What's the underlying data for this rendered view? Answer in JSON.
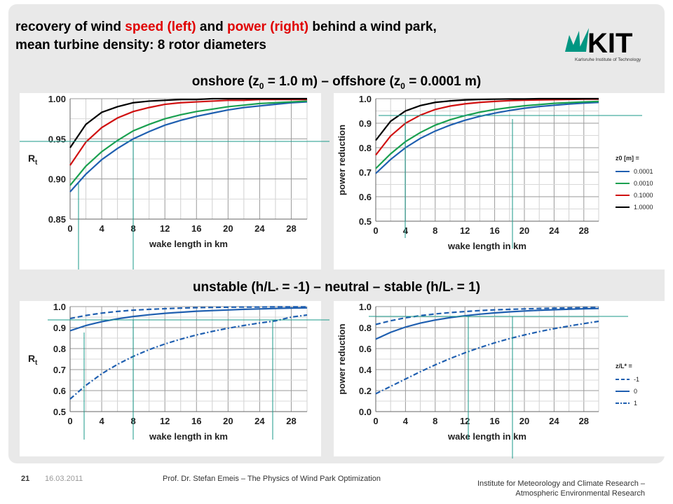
{
  "slide": {
    "title_line1_a": "recovery of wind ",
    "title_line1_b": "speed (left)",
    "title_line1_c": " and ",
    "title_line1_d": "power (right)",
    "title_line1_e": " behind a wind park,",
    "title_line2": "mean turbine density: 8 rotor diameters",
    "subhead1": {
      "a": "onshore (z",
      "sub1": "0",
      "b": " = 1.0 m) – offshore (z",
      "sub2": "0",
      "c": " = 0.0001 m)"
    },
    "subhead2": {
      "a": "unstable (h/L",
      "star1": "*",
      "b": " = -1) – neutral – stable (h/L",
      "star2": "*",
      "c": " = 1)"
    },
    "logo_text": "KIT",
    "logo_subtitle": "Karlsruhe Institute of Technology",
    "footer": {
      "page": "21",
      "date": "16.03.2011",
      "author": "Prof. Dr. Stefan Emeis – The Physics of Wind Park Optimization",
      "institute_line1": "Institute for Meteorology and Climate Research –",
      "institute_line2": "Atmospheric Environmental Research"
    },
    "colors": {
      "red": "#e00000",
      "kit_green": "#009682",
      "guide": "#1a9a8a"
    }
  },
  "chart_data": [
    {
      "type": "line",
      "ylabel": "Rt",
      "xlabel": "wake length in km",
      "xlim": [
        0,
        30
      ],
      "ylim": [
        0.85,
        1.0
      ],
      "xticks": [
        0,
        4,
        8,
        12,
        16,
        20,
        24,
        28
      ],
      "yticks": [
        0.85,
        0.9,
        0.95,
        1.0
      ],
      "ytick_labels": [
        "0.85",
        "0.90",
        "0.95",
        "1.00"
      ],
      "grid": true,
      "x": [
        0,
        2,
        4,
        6,
        8,
        10,
        12,
        14,
        16,
        18,
        20,
        22,
        24,
        26,
        28,
        30
      ],
      "series": [
        {
          "color": "#1f5fb0",
          "style": "solid",
          "values": [
            0.884,
            0.906,
            0.924,
            0.938,
            0.95,
            0.959,
            0.967,
            0.973,
            0.978,
            0.982,
            0.986,
            0.989,
            0.991,
            0.993,
            0.995,
            0.996
          ]
        },
        {
          "color": "#1aa050",
          "style": "solid",
          "values": [
            0.892,
            0.916,
            0.934,
            0.948,
            0.96,
            0.968,
            0.975,
            0.98,
            0.984,
            0.987,
            0.99,
            0.992,
            0.994,
            0.995,
            0.996,
            0.997
          ]
        },
        {
          "color": "#d01010",
          "style": "solid",
          "values": [
            0.917,
            0.946,
            0.964,
            0.976,
            0.984,
            0.989,
            0.993,
            0.995,
            0.996,
            0.997,
            0.998,
            0.998,
            0.999,
            0.999,
            0.999,
            0.999
          ]
        },
        {
          "color": "#000000",
          "style": "solid",
          "values": [
            0.939,
            0.968,
            0.983,
            0.99,
            0.995,
            0.997,
            0.998,
            0.999,
            0.999,
            1.0,
            1.0,
            1.0,
            1.0,
            1.0,
            1.0,
            1.0
          ]
        }
      ]
    },
    {
      "type": "line",
      "ylabel": "power reduction",
      "xlabel": "wake length in km",
      "xlim": [
        0,
        30
      ],
      "ylim": [
        0.5,
        1.0
      ],
      "xticks": [
        0,
        4,
        8,
        12,
        16,
        20,
        24,
        28
      ],
      "yticks": [
        0.5,
        0.6,
        0.7,
        0.8,
        0.9,
        1.0
      ],
      "ytick_labels": [
        "0.5",
        "0.6",
        "0.7",
        "0.8",
        "0.9",
        "1.0"
      ],
      "grid": true,
      "legend_title": "z0 [m] =",
      "legend_position": "right",
      "x": [
        0,
        2,
        4,
        6,
        8,
        10,
        12,
        14,
        16,
        18,
        20,
        22,
        24,
        26,
        28,
        30
      ],
      "series": [
        {
          "name": "0.0001",
          "color": "#1f5fb0",
          "style": "solid",
          "values": [
            0.695,
            0.752,
            0.8,
            0.838,
            0.868,
            0.892,
            0.912,
            0.928,
            0.941,
            0.952,
            0.961,
            0.968,
            0.973,
            0.978,
            0.982,
            0.985
          ]
        },
        {
          "name": "0.0010",
          "color": "#1aa050",
          "style": "solid",
          "values": [
            0.715,
            0.775,
            0.825,
            0.862,
            0.892,
            0.914,
            0.931,
            0.945,
            0.956,
            0.964,
            0.971,
            0.976,
            0.981,
            0.984,
            0.987,
            0.989
          ]
        },
        {
          "name": "0.1000",
          "color": "#d01010",
          "style": "solid",
          "values": [
            0.77,
            0.848,
            0.9,
            0.933,
            0.956,
            0.97,
            0.979,
            0.985,
            0.989,
            0.992,
            0.994,
            0.995,
            0.996,
            0.997,
            0.998,
            0.998
          ]
        },
        {
          "name": "1.0000",
          "color": "#000000",
          "style": "solid",
          "values": [
            0.83,
            0.908,
            0.95,
            0.972,
            0.985,
            0.991,
            0.995,
            0.997,
            0.998,
            0.999,
            0.999,
            1.0,
            1.0,
            1.0,
            1.0,
            1.0
          ]
        }
      ]
    },
    {
      "type": "line",
      "ylabel": "Rt",
      "xlabel": "wake length in km",
      "xlim": [
        0,
        30
      ],
      "ylim": [
        0.5,
        1.0
      ],
      "xticks": [
        0,
        4,
        8,
        12,
        16,
        20,
        24,
        28
      ],
      "yticks": [
        0.5,
        0.6,
        0.7,
        0.8,
        0.9,
        1.0
      ],
      "ytick_labels": [
        "0.5",
        "0.6",
        "0.7",
        "0.8",
        "0.9",
        "1.0"
      ],
      "grid": true,
      "x": [
        0,
        2,
        4,
        6,
        8,
        10,
        12,
        14,
        16,
        18,
        20,
        22,
        24,
        26,
        28,
        30
      ],
      "series": [
        {
          "color": "#1f5fb0",
          "style": "dashed",
          "values": [
            0.943,
            0.958,
            0.969,
            0.977,
            0.983,
            0.987,
            0.99,
            0.993,
            0.995,
            0.996,
            0.997,
            0.998,
            0.998,
            0.999,
            0.999,
            0.999
          ]
        },
        {
          "color": "#1f5fb0",
          "style": "solid",
          "values": [
            0.885,
            0.91,
            0.928,
            0.942,
            0.953,
            0.961,
            0.968,
            0.973,
            0.978,
            0.981,
            0.984,
            0.987,
            0.989,
            0.991,
            0.993,
            0.994
          ]
        },
        {
          "color": "#1f5fb0",
          "style": "dashdot",
          "values": [
            0.56,
            0.625,
            0.68,
            0.725,
            0.763,
            0.795,
            0.822,
            0.845,
            0.865,
            0.882,
            0.897,
            0.91,
            0.922,
            0.932,
            0.95,
            0.96
          ]
        }
      ]
    },
    {
      "type": "line",
      "ylabel": "power reduction",
      "xlabel": "wake length in km",
      "xlim": [
        0,
        30
      ],
      "ylim": [
        0.0,
        1.0
      ],
      "xticks": [
        0,
        4,
        8,
        12,
        16,
        20,
        24,
        28
      ],
      "yticks": [
        0.0,
        0.2,
        0.4,
        0.6,
        0.8,
        1.0
      ],
      "ytick_labels": [
        "0.0",
        "0.2",
        "0.4",
        "0.6",
        "0.8",
        "1.0"
      ],
      "grid": true,
      "legend_title": "z/L* =",
      "legend_position": "right",
      "x": [
        0,
        2,
        4,
        6,
        8,
        10,
        12,
        14,
        16,
        18,
        20,
        22,
        24,
        26,
        28,
        30
      ],
      "series": [
        {
          "name": "-1",
          "color": "#1f5fb0",
          "style": "dashed",
          "values": [
            0.83,
            0.865,
            0.893,
            0.914,
            0.93,
            0.943,
            0.953,
            0.962,
            0.969,
            0.974,
            0.978,
            0.982,
            0.985,
            0.988,
            0.99,
            0.992
          ]
        },
        {
          "name": "0",
          "color": "#1f5fb0",
          "style": "solid",
          "values": [
            0.69,
            0.755,
            0.805,
            0.843,
            0.872,
            0.895,
            0.913,
            0.928,
            0.94,
            0.95,
            0.958,
            0.965,
            0.97,
            0.975,
            0.979,
            0.982
          ]
        },
        {
          "name": "1",
          "color": "#1f5fb0",
          "style": "dashdot",
          "values": [
            0.17,
            0.24,
            0.31,
            0.38,
            0.445,
            0.505,
            0.56,
            0.61,
            0.655,
            0.695,
            0.73,
            0.762,
            0.79,
            0.815,
            0.838,
            0.86
          ]
        }
      ]
    }
  ]
}
